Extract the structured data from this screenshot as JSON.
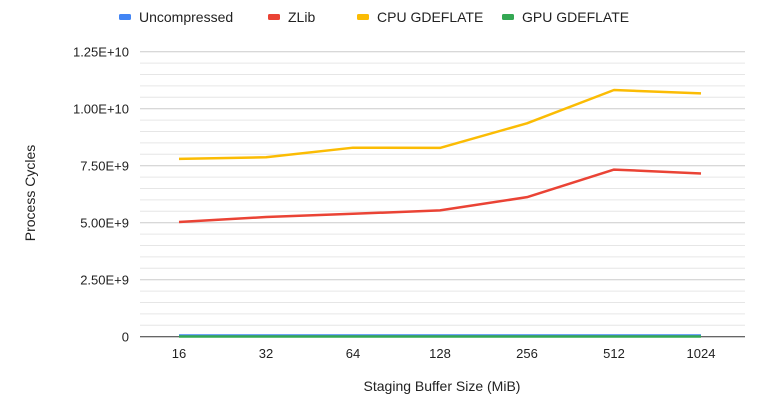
{
  "chart_data": {
    "type": "line",
    "title": "",
    "xlabel": "Staging Buffer Size (MiB)",
    "ylabel": "Process Cycles",
    "categories": [
      "16",
      "32",
      "64",
      "128",
      "256",
      "512",
      "1024"
    ],
    "ylim": [
      0,
      12500000000
    ],
    "yticks": [
      0,
      2500000000,
      5000000000,
      7500000000,
      10000000000,
      12500000000
    ],
    "ytick_labels": [
      "0",
      "2.50E+9",
      "5.00E+9",
      "7.50E+9",
      "1.00E+10",
      "1.25E+10"
    ],
    "grid": true,
    "legend_position": "top",
    "series": [
      {
        "name": "Uncompressed",
        "color": "#4285f4",
        "values": [
          50000000,
          50000000,
          50000000,
          50000000,
          50000000,
          50000000,
          50000000
        ]
      },
      {
        "name": "ZLib",
        "color": "#ea4335",
        "values": [
          5030000000,
          5250000000,
          5390000000,
          5540000000,
          6120000000,
          7330000000,
          7160000000
        ]
      },
      {
        "name": "CPU GDEFLATE",
        "color": "#fbbc04",
        "values": [
          7800000000,
          7870000000,
          8290000000,
          8280000000,
          9360000000,
          10820000000,
          10670000000
        ]
      },
      {
        "name": "GPU GDEFLATE",
        "color": "#34a853",
        "values": [
          10000000,
          10000000,
          10000000,
          10000000,
          10000000,
          10000000,
          10000000
        ]
      }
    ]
  }
}
